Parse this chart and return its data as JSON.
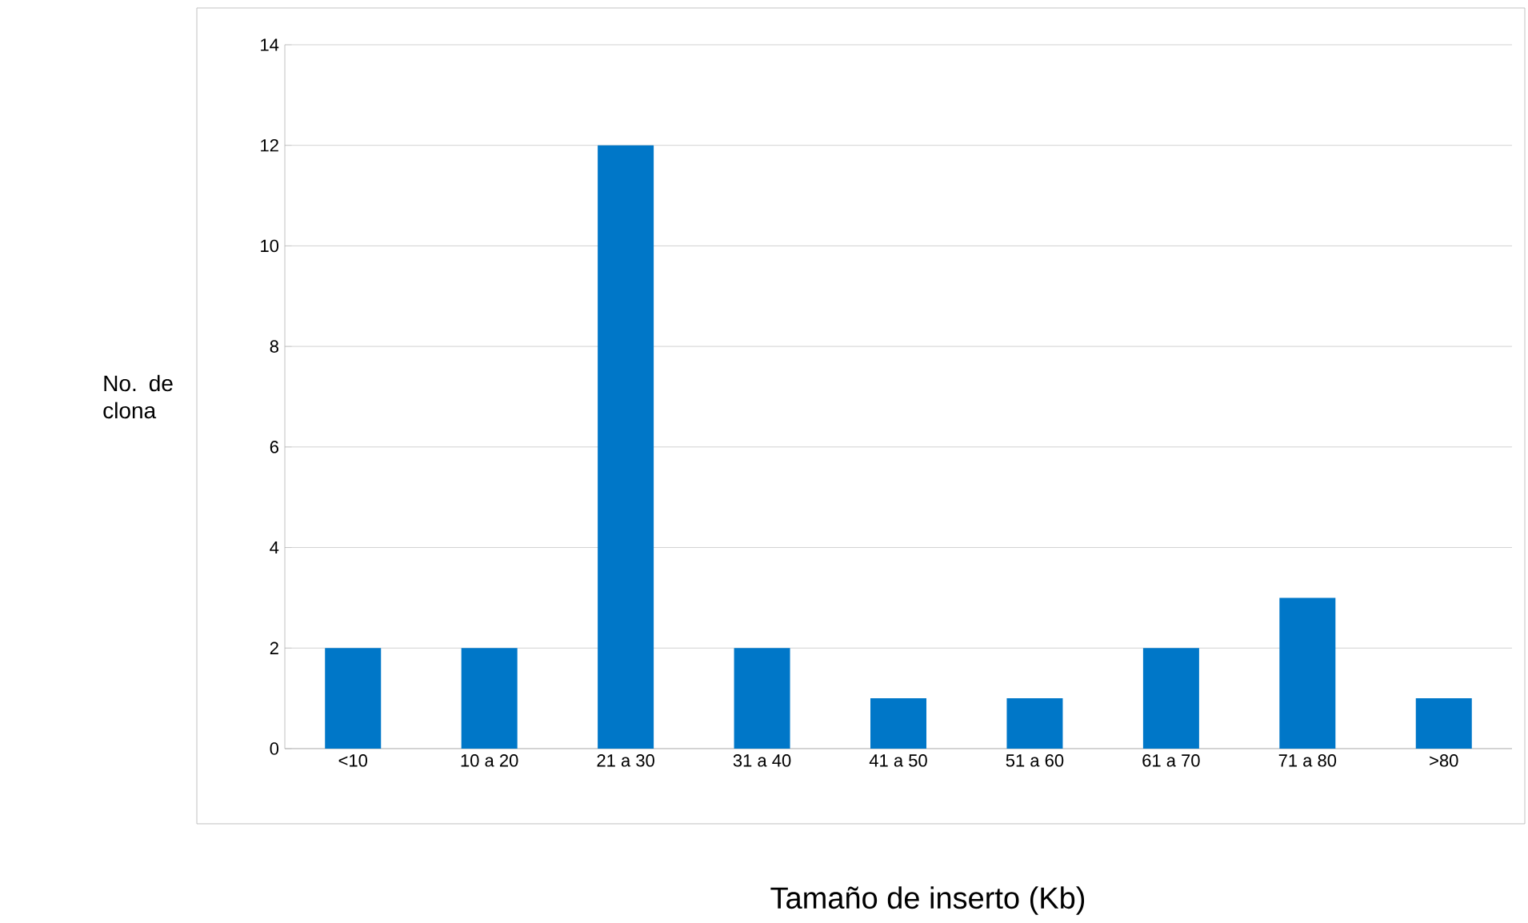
{
  "chart_data": {
    "type": "bar",
    "xlabel": "Tamaño de inserto (Kb)",
    "ylabel": "No. de clona",
    "categories": [
      "<10",
      "10 a 20",
      "21 a 30",
      "31 a 40",
      "41 a 50",
      "51 a 60",
      "61 a 70",
      "71 a 80",
      ">80"
    ],
    "values": [
      2,
      2,
      12,
      2,
      1,
      1,
      2,
      3,
      1
    ],
    "color": "#0077c8",
    "ylim": [
      0,
      14
    ],
    "yticks": [
      0,
      2,
      4,
      6,
      8,
      10,
      12,
      14
    ],
    "grid": "y"
  }
}
